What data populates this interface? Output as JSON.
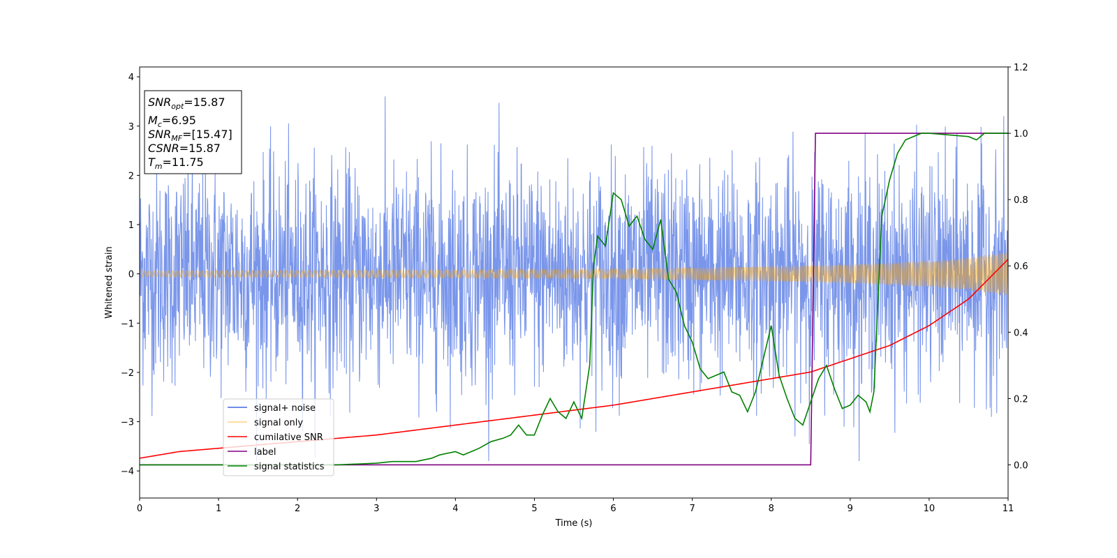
{
  "chart_data": {
    "type": "line",
    "title": "",
    "xlabel": "Time (s)",
    "ylabel": "Whitened strain",
    "xlim": [
      0,
      11
    ],
    "ylim": [
      -4.55,
      4.2
    ],
    "y2lim": [
      -0.1,
      1.2
    ],
    "x_ticks": [
      "0",
      "1",
      "2",
      "3",
      "4",
      "5",
      "6",
      "7",
      "8",
      "9",
      "10",
      "11"
    ],
    "y_ticks": [
      "4",
      "3",
      "2",
      "1",
      "0",
      "−1",
      "−2",
      "−3",
      "−4"
    ],
    "y2_ticks": [
      "1.2",
      "1.0",
      "0.8",
      "0.6",
      "0.4",
      "0.2",
      "0.0"
    ],
    "grid": false,
    "legend_position": "lower-left",
    "info_box": {
      "snr_opt": "=15.87",
      "mc": "=6.95",
      "snr_mf": "=[15.47]",
      "csnr": "=15.87",
      "tm": "=11.75"
    },
    "series": [
      {
        "name": "signal+ noise",
        "color": "#4169e1",
        "axis": "left",
        "kind": "noise",
        "description_values": {
          "center": 0.0,
          "typical_amplitude": 1.1,
          "max_abs": 3.8
        }
      },
      {
        "name": "signal only",
        "color": "#ffa500",
        "axis": "left",
        "kind": "chirp",
        "envelope": {
          "x": [
            0,
            2,
            4,
            6,
            8,
            9,
            10,
            10.5,
            11
          ],
          "y": [
            0.06,
            0.07,
            0.08,
            0.1,
            0.15,
            0.19,
            0.26,
            0.33,
            0.45
          ]
        }
      },
      {
        "name": "cumilative SNR",
        "color": "#ff0000",
        "axis": "right",
        "x": [
          0,
          0.5,
          1,
          2,
          3,
          4,
          5,
          6,
          7,
          7.5,
          8,
          8.5,
          9,
          9.5,
          10,
          10.5,
          11
        ],
        "y": [
          0.02,
          0.04,
          0.05,
          0.07,
          0.09,
          0.12,
          0.15,
          0.18,
          0.22,
          0.24,
          0.26,
          0.28,
          0.32,
          0.36,
          0.42,
          0.5,
          0.62
        ]
      },
      {
        "name": "label",
        "color": "#800080",
        "axis": "right",
        "x": [
          0,
          8.5,
          8.56,
          11
        ],
        "y": [
          0,
          0,
          1,
          1
        ]
      },
      {
        "name": "signal statistics",
        "color": "#008000",
        "axis": "right",
        "x": [
          0,
          1,
          2,
          2.5,
          3,
          3.2,
          3.5,
          3.7,
          3.8,
          4,
          4.1,
          4.2,
          4.3,
          4.45,
          4.6,
          4.7,
          4.8,
          4.9,
          5.0,
          5.1,
          5.2,
          5.3,
          5.4,
          5.5,
          5.6,
          5.7,
          5.75,
          5.8,
          5.9,
          6.0,
          6.1,
          6.2,
          6.3,
          6.4,
          6.5,
          6.6,
          6.7,
          6.8,
          6.9,
          7.0,
          7.1,
          7.2,
          7.3,
          7.4,
          7.5,
          7.6,
          7.7,
          7.8,
          7.9,
          8.0,
          8.1,
          8.2,
          8.3,
          8.4,
          8.5,
          8.6,
          8.7,
          8.8,
          8.9,
          9.0,
          9.1,
          9.2,
          9.25,
          9.3,
          9.4,
          9.5,
          9.6,
          9.7,
          9.8,
          9.9,
          10,
          10.5,
          10.6,
          10.7,
          11
        ],
        "y": [
          0,
          0,
          0,
          0,
          0.005,
          0.01,
          0.01,
          0.02,
          0.03,
          0.04,
          0.03,
          0.04,
          0.05,
          0.07,
          0.08,
          0.09,
          0.12,
          0.09,
          0.09,
          0.15,
          0.2,
          0.16,
          0.14,
          0.19,
          0.14,
          0.3,
          0.6,
          0.69,
          0.66,
          0.82,
          0.8,
          0.72,
          0.75,
          0.68,
          0.65,
          0.74,
          0.56,
          0.52,
          0.42,
          0.37,
          0.29,
          0.26,
          0.27,
          0.28,
          0.22,
          0.21,
          0.16,
          0.22,
          0.32,
          0.42,
          0.27,
          0.2,
          0.14,
          0.12,
          0.19,
          0.26,
          0.3,
          0.23,
          0.17,
          0.18,
          0.21,
          0.19,
          0.16,
          0.22,
          0.75,
          0.86,
          0.94,
          0.98,
          0.99,
          1.0,
          1.0,
          0.99,
          0.98,
          1.0,
          1.0
        ]
      }
    ]
  }
}
